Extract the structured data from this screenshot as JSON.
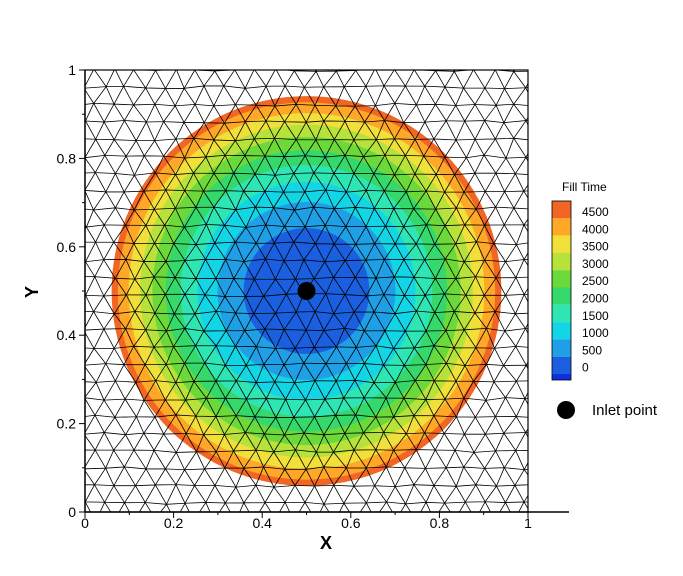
{
  "chart_data": {
    "type": "heatmap",
    "title": "",
    "xlabel": "X",
    "ylabel": "Y",
    "xlim": [
      0,
      1
    ],
    "ylim": [
      0,
      1
    ],
    "x_ticks": [
      "0",
      "0.2",
      "0.4",
      "0.6",
      "0.8",
      "1"
    ],
    "y_ticks": [
      "0",
      "0.2",
      "0.4",
      "0.6",
      "0.8",
      "1"
    ],
    "x_tick_values": [
      0,
      0.2,
      0.4,
      0.6,
      0.8,
      1
    ],
    "y_tick_values": [
      0,
      0.2,
      0.4,
      0.6,
      0.8,
      1
    ],
    "grid": false,
    "mesh": "triangular",
    "inlet": {
      "x": 0.5,
      "y": 0.5
    },
    "fill_radius": 0.44,
    "max_fill_time": 4800,
    "legend": {
      "title": "Fill Time",
      "placement": "right",
      "levels": [
        {
          "label": "4500",
          "value": 4500,
          "color": "#f26522"
        },
        {
          "label": "4000",
          "value": 4000,
          "color": "#ffa726"
        },
        {
          "label": "3500",
          "value": 3500,
          "color": "#f2e03a"
        },
        {
          "label": "3000",
          "value": 3000,
          "color": "#b6e23a"
        },
        {
          "label": "2500",
          "value": 2500,
          "color": "#6cd93a"
        },
        {
          "label": "2000",
          "value": 2000,
          "color": "#35d86a"
        },
        {
          "label": "1500",
          "value": 1500,
          "color": "#2ee6b4"
        },
        {
          "label": "1000",
          "value": 1000,
          "color": "#12d6e6"
        },
        {
          "label": "500",
          "value": 500,
          "color": "#1f9fe6"
        },
        {
          "label": "0",
          "value": 0,
          "color": "#1a5fe0"
        }
      ],
      "bottom_color": "#1030e0"
    },
    "marker_legend": {
      "label": "Inlet point",
      "color": "#000000"
    }
  }
}
